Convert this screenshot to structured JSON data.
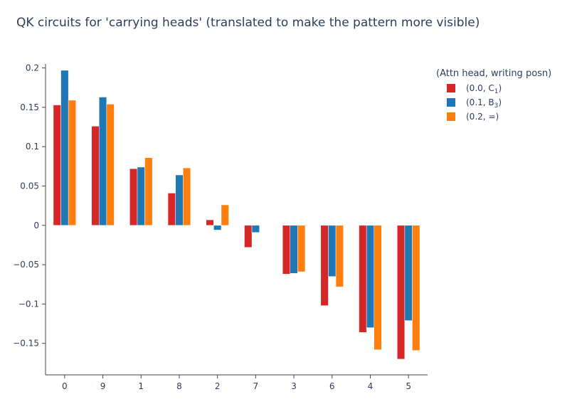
{
  "chart_data": {
    "type": "bar",
    "title": "QK circuits for 'carrying heads' (translated to make the pattern more visible)",
    "xlabel": "",
    "ylabel": "",
    "categories": [
      "0",
      "9",
      "1",
      "8",
      "2",
      "7",
      "3",
      "6",
      "4",
      "5"
    ],
    "ylim": [
      -0.19,
      0.205
    ],
    "yticks": [
      0.2,
      0.15,
      0.1,
      0.05,
      0,
      -0.05,
      -0.1,
      -0.15
    ],
    "ytick_labels": [
      "0.2",
      "0.15",
      "0.1",
      "0.05",
      "0",
      "−0.05",
      "−0.1",
      "−0.15"
    ],
    "legend": {
      "title": "(Attn head, writing posn)",
      "placement": "top-right"
    },
    "series": [
      {
        "name": "(0.0, C1)",
        "label_main": "(0.0, C",
        "label_sub": "1",
        "label_end": ")",
        "color": "#d62728",
        "values": [
          0.153,
          0.126,
          0.072,
          0.041,
          0.007,
          -0.028,
          -0.062,
          -0.102,
          -0.136,
          -0.17
        ]
      },
      {
        "name": "(0.1, B3)",
        "label_main": "(0.1, B",
        "label_sub": "3",
        "label_end": ")",
        "color": "#1f77b4",
        "values": [
          0.197,
          0.163,
          0.074,
          0.064,
          -0.006,
          -0.009,
          -0.061,
          -0.065,
          -0.13,
          -0.121
        ]
      },
      {
        "name": "(0.2, =)",
        "label_main": "(0.2, =)",
        "label_sub": "",
        "label_end": "",
        "color": "#ff7f0e",
        "values": [
          0.159,
          0.154,
          0.086,
          0.073,
          0.026,
          0.0,
          -0.059,
          -0.078,
          -0.158,
          -0.159
        ]
      }
    ]
  }
}
